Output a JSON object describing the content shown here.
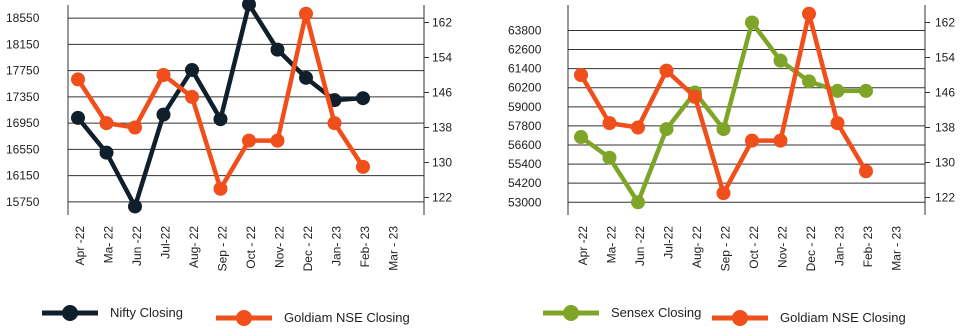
{
  "chart_data": [
    {
      "type": "line",
      "categories": [
        "Apr -22",
        "Ma- 22",
        "Jun -22",
        "Jul-22",
        "Aug- 22",
        "Sep - 22",
        "Oct - 22",
        "Nov- 22",
        "Dec - 22",
        "Jan- 23",
        "Feb- 23",
        "Mar - 23"
      ],
      "y_left": {
        "ticks": [
          "18550",
          "18150",
          "17750",
          "17350",
          "16950",
          "16550",
          "16150",
          "15750"
        ],
        "range": [
          15550,
          18750
        ]
      },
      "y_right": {
        "ticks": [
          "162",
          "154",
          "146",
          "138",
          "130",
          "122"
        ],
        "range": [
          118,
          166
        ]
      },
      "grid": true,
      "series": [
        {
          "name": "Nifty Closing",
          "axis": "left",
          "color": "#0f1f2b",
          "values": [
            17030,
            16500,
            15680,
            17080,
            17760,
            17010,
            18760,
            18070,
            17640,
            17300,
            17330,
            null
          ]
        },
        {
          "name": "Goldiam NSE Closing",
          "axis": "right",
          "color": "#f04e1a",
          "values": [
            149,
            139,
            138,
            150,
            145,
            124,
            135,
            135,
            164,
            139,
            129,
            null
          ]
        }
      ],
      "legend": "bottom"
    },
    {
      "type": "line",
      "categories": [
        "Apr -22",
        "Ma- 22",
        "Jun -22",
        "Jul-22",
        "Aug- 22",
        "Sep - 22",
        "Oct - 22",
        "Nov- 22",
        "Dec - 22",
        "Jan- 23",
        "Feb- 23",
        "Mar - 23"
      ],
      "y_left": {
        "ticks": [
          "63800",
          "62600",
          "61400",
          "60200",
          "59000",
          "57800",
          "56600",
          "55400",
          "54200",
          "53000"
        ],
        "range": [
          52200,
          65400
        ]
      },
      "y_right": {
        "ticks": [
          "162",
          "154",
          "146",
          "138",
          "130",
          "122"
        ],
        "range": [
          118,
          166
        ]
      },
      "grid": true,
      "series": [
        {
          "name": "Sensex Closing",
          "axis": "left",
          "color": "#7fa528",
          "values": [
            57100,
            55800,
            53000,
            57600,
            59900,
            57600,
            64300,
            61900,
            60600,
            60000,
            60000,
            null
          ]
        },
        {
          "name": "Goldiam NSE Closing",
          "axis": "right",
          "color": "#f04e1a",
          "values": [
            150,
            139,
            138,
            151,
            145,
            123,
            135,
            135,
            164,
            139,
            128,
            null
          ]
        }
      ],
      "legend": "bottom"
    }
  ]
}
